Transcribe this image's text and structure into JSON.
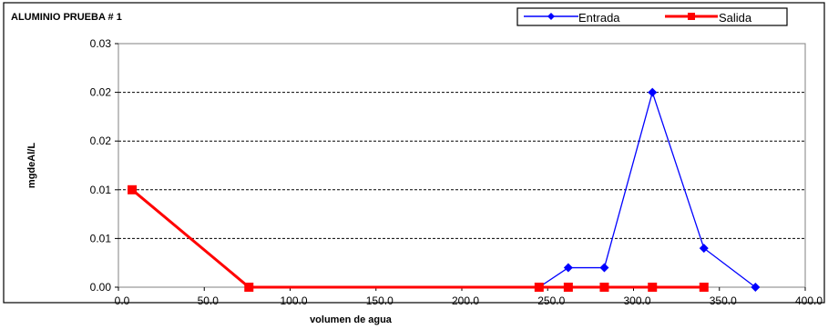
{
  "chart_data": {
    "type": "line",
    "title": "ALUMINIO PRUEBA # 1",
    "xlabel": "volumen de agua",
    "ylabel": "mgdeAl/L",
    "xlim": [
      0,
      400
    ],
    "ylim": [
      0,
      0.025
    ],
    "x_ticks": [
      "0.0",
      "50.0",
      "100.0",
      "150.0",
      "200.0",
      "250.0",
      "300.0",
      "350.0",
      "400.0"
    ],
    "y_ticks": [
      "0.00",
      "0.01",
      "0.01",
      "0.02",
      "0.02",
      "0.03"
    ],
    "grid": "horizontal-dashed",
    "legend_position": "top-right",
    "series": [
      {
        "name": "Entrada",
        "color": "#0000ff",
        "marker": "diamond",
        "x": [
          245,
          262,
          283,
          311,
          341,
          371
        ],
        "y": [
          0,
          0.002,
          0.002,
          0.02,
          0.004,
          0
        ]
      },
      {
        "name": "Salida",
        "color": "#ff0000",
        "marker": "square",
        "x": [
          8,
          76,
          245,
          262,
          283,
          311,
          341
        ],
        "y": [
          0.01,
          0,
          0,
          0,
          0,
          0,
          0
        ]
      }
    ]
  }
}
